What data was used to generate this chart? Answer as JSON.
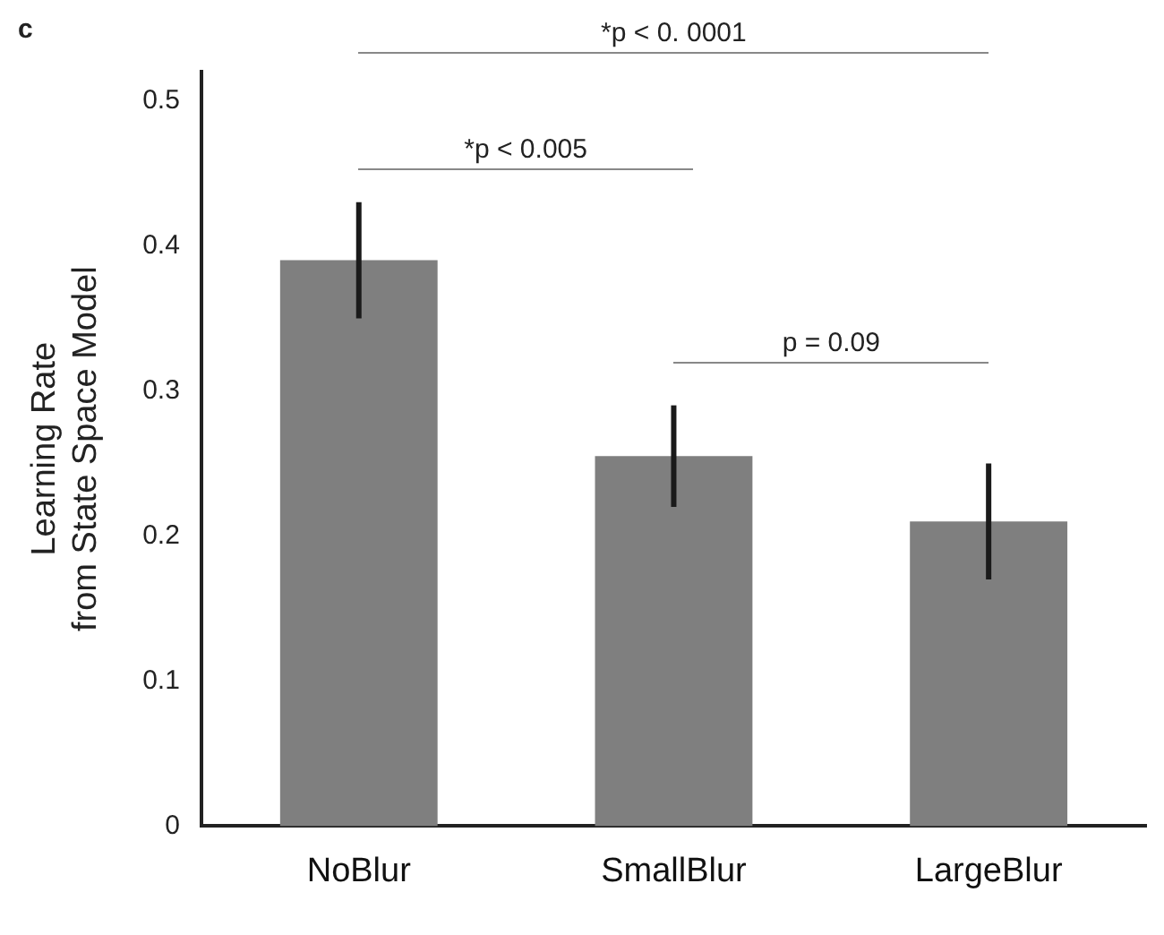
{
  "chart_data": {
    "type": "bar",
    "title": "c",
    "ylabel": "Learning Rate\nfrom State Space Model",
    "categories": [
      "NoBlur",
      "SmallBlur",
      "LargeBlur"
    ],
    "values": [
      0.39,
      0.255,
      0.21
    ],
    "color": "#7f7f7f",
    "errors": [
      [
        0.35,
        0.43
      ],
      [
        0.22,
        0.29
      ],
      [
        0.17,
        0.25
      ]
    ],
    "ylim": [
      0,
      0.52
    ],
    "yticks": [
      0,
      0.1,
      0.2,
      0.3,
      0.4,
      0.5
    ],
    "grid": false,
    "legend": false,
    "annotations": [
      "*p < 0. 0001",
      "*p < 0.005",
      "p = 0.09"
    ]
  }
}
